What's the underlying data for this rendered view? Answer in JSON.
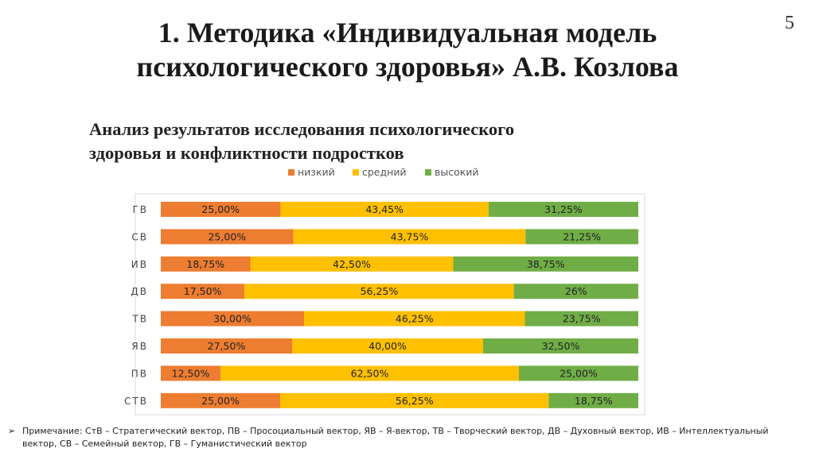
{
  "slide": {
    "page_number": "5",
    "title_line1": "1. Методика «Индивидуальная модель",
    "title_line2": "психологического здоровья» А.В. Козлова",
    "subtitle_line1": "Анализ результатов исследования психологического",
    "subtitle_line2": "здоровья и конфликтности подростков",
    "note_bullet": "➢",
    "note_text": "Примечание: СтВ – Стратегический вектор, ПВ – Просоциальный вектор, ЯВ – Я-вектор, ТВ – Творческий вектор, ДВ – Духовный вектор, ИВ – Интеллектуальный вектор, СВ – Семейный вектор, ГВ – Гуманистический вектор"
  },
  "chart_data": {
    "type": "bar",
    "orientation": "horizontal",
    "stacked": "100%",
    "legend_position": "top",
    "grid": false,
    "categories": [
      "ГВ",
      "СВ",
      "ИВ",
      "ДВ",
      "ТВ",
      "ЯВ",
      "ПВ",
      "СТВ"
    ],
    "series": [
      {
        "name": "низкий",
        "color": "#ED7D31",
        "values": [
          25.0,
          25.0,
          18.75,
          17.5,
          30.0,
          27.5,
          12.5,
          25.0
        ],
        "labels": [
          "25,00%",
          "25,00%",
          "18,75%",
          "17,50%",
          "30,00%",
          "27,50%",
          "12,50%",
          "25,00%"
        ]
      },
      {
        "name": "средний",
        "color": "#FFC000",
        "values": [
          43.45,
          43.75,
          42.5,
          56.25,
          46.25,
          40.0,
          62.5,
          56.25
        ],
        "labels": [
          "43,45%",
          "43,75%",
          "42,50%",
          "56,25%",
          "46,25%",
          "40,00%",
          "62,50%",
          "56,25%"
        ]
      },
      {
        "name": "высокий",
        "color": "#70AD47",
        "values": [
          31.25,
          21.25,
          38.75,
          26.0,
          23.75,
          32.5,
          25.0,
          18.75
        ],
        "labels": [
          "31,25%",
          "21,25%",
          "38,75%",
          "26%",
          "23,75%",
          "32,50%",
          "25,00%",
          "18,75%"
        ]
      }
    ]
  }
}
